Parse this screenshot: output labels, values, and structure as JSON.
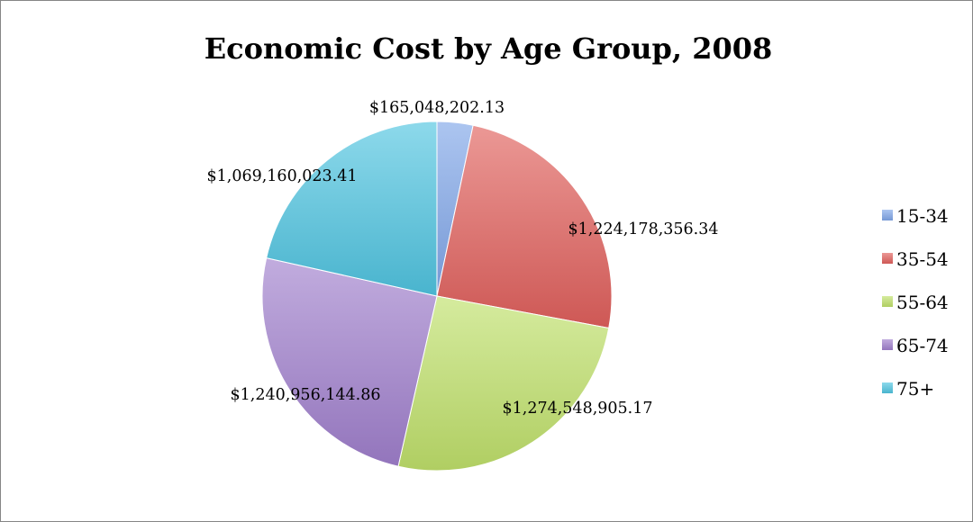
{
  "chart_data": {
    "type": "pie",
    "title": "Economic Cost by Age Group, 2008",
    "categories": [
      "15-34",
      "35-54",
      "55-64",
      "65-74",
      "75+"
    ],
    "values": [
      165048202.13,
      1224178356.34,
      1274548905.17,
      1240956144.86,
      1069160023.41
    ],
    "data_labels": [
      "$165,048,202.13",
      "$1,224,178,356.34",
      "$1,274,548,905.17",
      "$1,240,956,144.86",
      "$1,069,160,023.41"
    ],
    "colors": [
      "#7fa5e8",
      "#e0605c",
      "#bfe06a",
      "#a07fcc",
      "#4fc4e0"
    ],
    "legend_position": "right",
    "start_angle_deg": 0,
    "direction": "clockwise"
  }
}
